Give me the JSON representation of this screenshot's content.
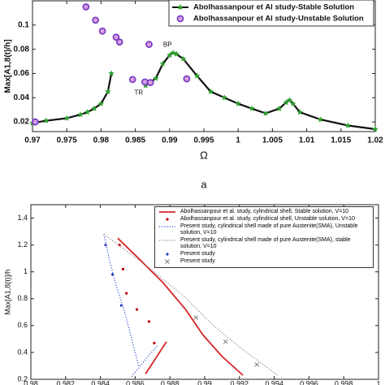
{
  "chart_data": [
    {
      "type": "line",
      "xlabel": "Ω",
      "ylabel": "Max[A1,8(t)/h]",
      "panel_label": "a",
      "annotations": [
        "BP",
        "TR"
      ],
      "xlim": [
        0.97,
        1.02
      ],
      "xticks": [
        0.97,
        0.975,
        0.98,
        0.985,
        0.99,
        0.995,
        1,
        1.005,
        1.01,
        1.015,
        1.02
      ],
      "ylim": [
        0.012,
        0.12
      ],
      "yticks": [
        0.02,
        0.04,
        0.06,
        0.08,
        0.1
      ],
      "legend": "upper right",
      "series": [
        {
          "name": "Abolhassanpour et Al study-Stable Solution",
          "color": "#2e9e2e",
          "style": "line-star",
          "x": [
            0.97,
            0.972,
            0.975,
            0.977,
            0.978,
            0.979,
            0.98,
            0.981,
            0.9815,
            null,
            0.9865,
            0.988,
            0.989,
            0.99,
            0.9905,
            0.991,
            0.992,
            0.994,
            0.996,
            0.998,
            1.0,
            1.002,
            1.004,
            1.006,
            1.007,
            1.0075,
            1.008,
            1.009,
            1.012,
            1.016,
            1.02
          ],
          "values": [
            0.019,
            0.021,
            0.023,
            0.026,
            0.028,
            0.031,
            0.035,
            0.045,
            0.06,
            null,
            0.05,
            0.056,
            0.068,
            0.075,
            0.077,
            0.076,
            0.072,
            0.058,
            0.045,
            0.04,
            0.035,
            0.031,
            0.027,
            0.031,
            0.036,
            0.038,
            0.035,
            0.028,
            0.022,
            0.017,
            0.014
          ]
        },
        {
          "name": "Abolhassanpour et Al study-Unstable Solution",
          "color": "#7b3fbf",
          "style": "circle",
          "x": [
            0.9704,
            0.9778,
            0.9792,
            0.9802,
            0.9822,
            0.9827,
            0.9846,
            0.9864,
            0.987,
            0.9872,
            0.9925
          ],
          "values": [
            0.02,
            0.115,
            0.104,
            0.095,
            0.09,
            0.086,
            0.055,
            0.053,
            0.084,
            0.0525,
            0.0556
          ]
        }
      ]
    },
    {
      "type": "line",
      "ylabel": "Max[A1,8(t)]/h",
      "xlim": [
        0.98,
        1.0
      ],
      "xticks": [
        0.98,
        0.982,
        0.984,
        0.986,
        0.988,
        0.99,
        0.992,
        0.994,
        0.996,
        0.998,
        1
      ],
      "ylim": [
        0.2,
        1.5
      ],
      "yticks": [
        0.2,
        0.4,
        0.6,
        0.8,
        1,
        1.2,
        1.4
      ],
      "legend": "upper right",
      "series": [
        {
          "name": "Abolhassanpour et al. study, cylindrical shell, Stable solution, V=10",
          "color": "#d62728",
          "style": "line",
          "x": [
            0.985,
            0.9862,
            0.9876,
            0.9889,
            0.9899,
            0.991,
            0.9922,
            null,
            0.9866,
            0.9872,
            0.9878
          ],
          "values": [
            1.25,
            1.1,
            0.92,
            0.72,
            0.53,
            0.37,
            0.23,
            null,
            0.24,
            0.36,
            0.48
          ]
        },
        {
          "name": "Abolhassanpour et al. study, cylindrical shell, Unstable solution, V=10",
          "color": "#c00000",
          "style": "dot",
          "x": [
            0.9851,
            0.9853,
            0.9855,
            0.9861,
            0.9868,
            0.9871
          ],
          "values": [
            1.2,
            1.02,
            0.84,
            0.72,
            0.63,
            0.47
          ]
        },
        {
          "name": "Present study, cylindrical shell made of pure Austenite(SMA), Unstable solution, V=10",
          "color": "#3050d0",
          "style": "dotted",
          "x": [
            0.9842,
            0.9845,
            0.9849,
            0.9854,
            0.9858,
            0.9862,
            null,
            0.9858,
            0.9863,
            0.9868,
            0.9873
          ],
          "values": [
            1.28,
            1.1,
            0.9,
            0.7,
            0.5,
            0.3,
            null,
            0.22,
            0.3,
            0.38,
            0.45
          ]
        },
        {
          "name": "Present study, cylindrical shell made of pure Austenite(SMA), stable solution, V=10",
          "color": "#888888",
          "style": "dotted",
          "x": [
            0.9842,
            0.9866,
            0.9888,
            0.9905,
            0.9922,
            0.9942
          ],
          "values": [
            1.28,
            1.05,
            0.82,
            0.6,
            0.42,
            0.23
          ]
        },
        {
          "name": "Present study",
          "color": "#1f3fbf",
          "style": "dot",
          "x": [
            0.9843,
            0.9847,
            0.9852
          ],
          "values": [
            1.2,
            0.98,
            0.75
          ]
        },
        {
          "name": "Present study",
          "color": "#777777",
          "style": "x",
          "x": [
            0.9895,
            0.9912,
            0.993
          ],
          "values": [
            0.66,
            0.48,
            0.31
          ]
        }
      ]
    }
  ]
}
